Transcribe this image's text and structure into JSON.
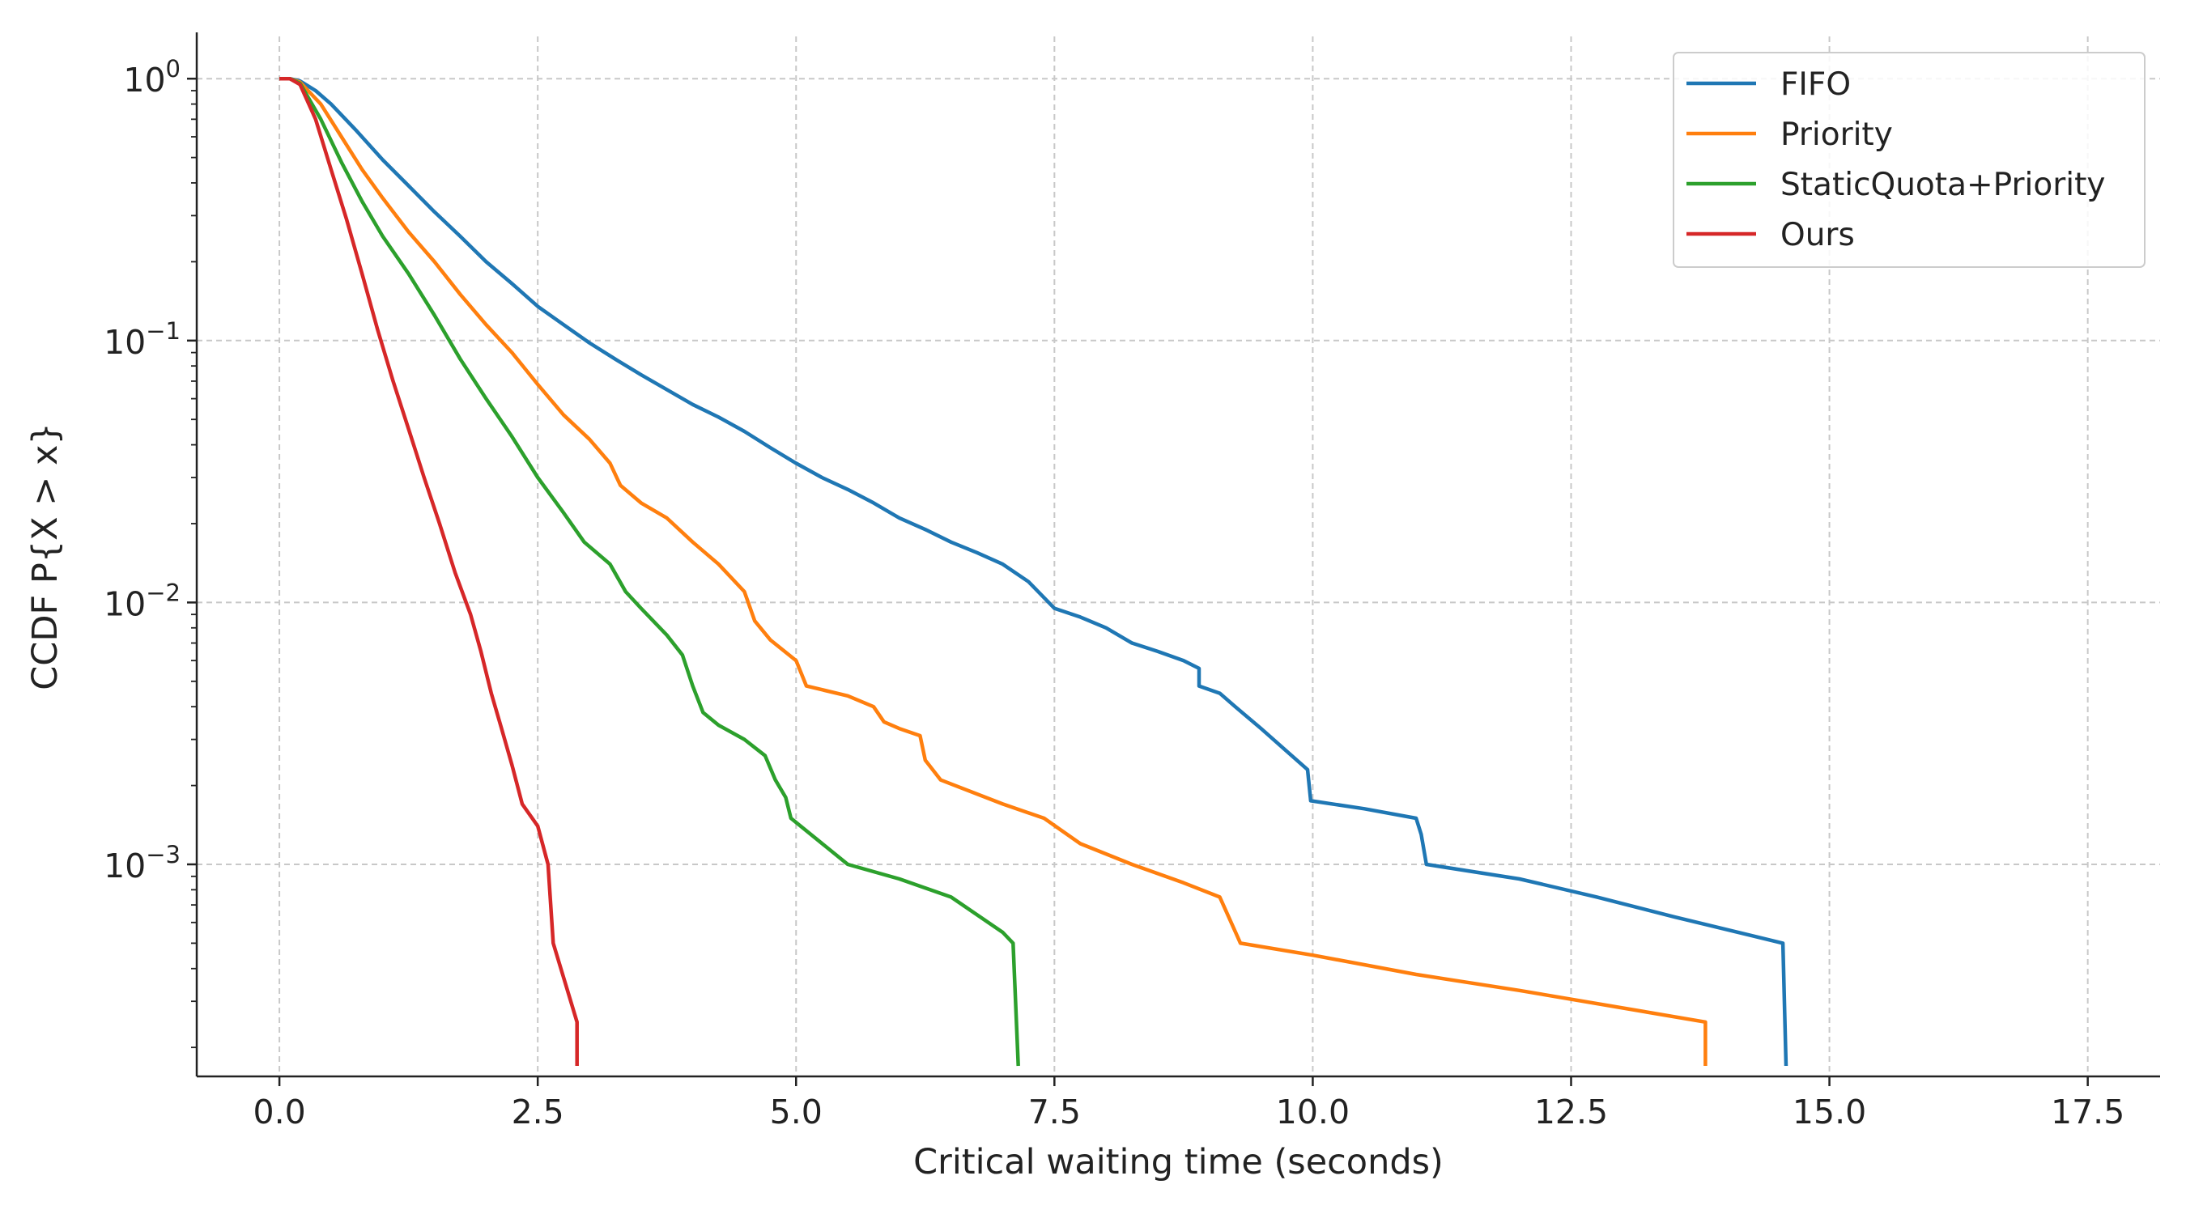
{
  "chart_data": {
    "type": "line",
    "title": "",
    "xlabel": "Critical waiting time (seconds)",
    "ylabel": "CCDF  P{X > x}",
    "xlim": [
      -0.8,
      18.2
    ],
    "ylim": [
      0.000155,
      1.45
    ],
    "yscale": "log",
    "grid": true,
    "legend_position": "top-right",
    "x_ticks": [
      0,
      2.5,
      5,
      7.5,
      10,
      12.5,
      15,
      17.5
    ],
    "x_tick_labels": [
      "0.0",
      "2.5",
      "5.0",
      "7.5",
      "10.0",
      "12.5",
      "15.0",
      "17.5"
    ],
    "y_ticks": [
      {
        "value": 1,
        "base": "10",
        "exp": "0"
      },
      {
        "value": 0.1,
        "base": "10",
        "exp": "−1"
      },
      {
        "value": 0.01,
        "base": "10",
        "exp": "−2"
      },
      {
        "value": 0.001,
        "base": "10",
        "exp": "−3"
      }
    ],
    "series": [
      {
        "name": "FIFO",
        "color": "#1f77b4",
        "points": [
          [
            0.0,
            1.0
          ],
          [
            0.1,
            1.0
          ],
          [
            0.2,
            0.98
          ],
          [
            0.35,
            0.9
          ],
          [
            0.5,
            0.8
          ],
          [
            0.75,
            0.63
          ],
          [
            1.0,
            0.49
          ],
          [
            1.25,
            0.39
          ],
          [
            1.5,
            0.31
          ],
          [
            1.75,
            0.25
          ],
          [
            2.0,
            0.2
          ],
          [
            2.25,
            0.165
          ],
          [
            2.5,
            0.135
          ],
          [
            2.75,
            0.115
          ],
          [
            3.0,
            0.098
          ],
          [
            3.25,
            0.085
          ],
          [
            3.5,
            0.074
          ],
          [
            3.75,
            0.065
          ],
          [
            4.0,
            0.057
          ],
          [
            4.25,
            0.051
          ],
          [
            4.5,
            0.045
          ],
          [
            4.75,
            0.039
          ],
          [
            5.0,
            0.034
          ],
          [
            5.25,
            0.03
          ],
          [
            5.5,
            0.027
          ],
          [
            5.75,
            0.024
          ],
          [
            6.0,
            0.021
          ],
          [
            6.25,
            0.019
          ],
          [
            6.5,
            0.017
          ],
          [
            6.75,
            0.0155
          ],
          [
            7.0,
            0.014
          ],
          [
            7.25,
            0.012
          ],
          [
            7.5,
            0.0095
          ],
          [
            7.75,
            0.0088
          ],
          [
            8.0,
            0.008
          ],
          [
            8.25,
            0.007
          ],
          [
            8.5,
            0.0065
          ],
          [
            8.75,
            0.006
          ],
          [
            8.9,
            0.0056
          ],
          [
            8.9,
            0.0048
          ],
          [
            9.1,
            0.0045
          ],
          [
            9.25,
            0.004
          ],
          [
            9.5,
            0.0033
          ],
          [
            9.75,
            0.0027
          ],
          [
            9.95,
            0.0023
          ],
          [
            9.98,
            0.00175
          ],
          [
            10.5,
            0.00163
          ],
          [
            11.0,
            0.0015
          ],
          [
            11.05,
            0.0013
          ],
          [
            11.1,
            0.001
          ],
          [
            12.0,
            0.00088
          ],
          [
            12.75,
            0.00075
          ],
          [
            13.5,
            0.00063
          ],
          [
            14.55,
            0.0005
          ],
          [
            14.58,
            0.00017
          ]
        ]
      },
      {
        "name": "Priority",
        "color": "#ff7f0e",
        "points": [
          [
            0.0,
            1.0
          ],
          [
            0.1,
            1.0
          ],
          [
            0.2,
            0.97
          ],
          [
            0.4,
            0.8
          ],
          [
            0.6,
            0.6
          ],
          [
            0.8,
            0.45
          ],
          [
            1.0,
            0.35
          ],
          [
            1.25,
            0.26
          ],
          [
            1.5,
            0.2
          ],
          [
            1.75,
            0.15
          ],
          [
            2.0,
            0.115
          ],
          [
            2.25,
            0.09
          ],
          [
            2.5,
            0.068
          ],
          [
            2.75,
            0.052
          ],
          [
            3.0,
            0.042
          ],
          [
            3.2,
            0.034
          ],
          [
            3.3,
            0.028
          ],
          [
            3.5,
            0.024
          ],
          [
            3.75,
            0.021
          ],
          [
            4.0,
            0.017
          ],
          [
            4.25,
            0.014
          ],
          [
            4.5,
            0.011
          ],
          [
            4.6,
            0.0085
          ],
          [
            4.75,
            0.0072
          ],
          [
            5.0,
            0.006
          ],
          [
            5.1,
            0.0048
          ],
          [
            5.5,
            0.0044
          ],
          [
            5.75,
            0.004
          ],
          [
            5.85,
            0.0035
          ],
          [
            6.0,
            0.0033
          ],
          [
            6.2,
            0.0031
          ],
          [
            6.25,
            0.0025
          ],
          [
            6.4,
            0.0021
          ],
          [
            7.0,
            0.0017
          ],
          [
            7.4,
            0.0015
          ],
          [
            7.75,
            0.0012
          ],
          [
            8.25,
            0.001
          ],
          [
            8.75,
            0.00085
          ],
          [
            9.1,
            0.00075
          ],
          [
            9.3,
            0.0005
          ],
          [
            10.0,
            0.00045
          ],
          [
            11.0,
            0.00038
          ],
          [
            12.0,
            0.00033
          ],
          [
            13.8,
            0.00025
          ],
          [
            13.8,
            0.00017
          ]
        ]
      },
      {
        "name": "StaticQuota+Priority",
        "color": "#2ca02c",
        "points": [
          [
            0.0,
            1.0
          ],
          [
            0.1,
            1.0
          ],
          [
            0.2,
            0.96
          ],
          [
            0.4,
            0.7
          ],
          [
            0.6,
            0.48
          ],
          [
            0.8,
            0.34
          ],
          [
            1.0,
            0.25
          ],
          [
            1.25,
            0.18
          ],
          [
            1.5,
            0.125
          ],
          [
            1.75,
            0.085
          ],
          [
            2.0,
            0.06
          ],
          [
            2.25,
            0.043
          ],
          [
            2.5,
            0.03
          ],
          [
            2.75,
            0.022
          ],
          [
            2.95,
            0.017
          ],
          [
            3.2,
            0.014
          ],
          [
            3.35,
            0.011
          ],
          [
            3.5,
            0.0095
          ],
          [
            3.75,
            0.0075
          ],
          [
            3.9,
            0.0063
          ],
          [
            4.0,
            0.0048
          ],
          [
            4.1,
            0.0038
          ],
          [
            4.25,
            0.0034
          ],
          [
            4.5,
            0.003
          ],
          [
            4.7,
            0.0026
          ],
          [
            4.8,
            0.0021
          ],
          [
            4.9,
            0.0018
          ],
          [
            4.95,
            0.0015
          ],
          [
            5.5,
            0.001
          ],
          [
            6.0,
            0.00088
          ],
          [
            6.5,
            0.00075
          ],
          [
            7.0,
            0.00055
          ],
          [
            7.1,
            0.0005
          ],
          [
            7.15,
            0.00017
          ]
        ]
      },
      {
        "name": "Ours",
        "color": "#d62728",
        "points": [
          [
            0.0,
            1.0
          ],
          [
            0.1,
            1.0
          ],
          [
            0.2,
            0.95
          ],
          [
            0.35,
            0.7
          ],
          [
            0.5,
            0.45
          ],
          [
            0.65,
            0.29
          ],
          [
            0.8,
            0.18
          ],
          [
            0.95,
            0.11
          ],
          [
            1.1,
            0.07
          ],
          [
            1.25,
            0.046
          ],
          [
            1.4,
            0.03
          ],
          [
            1.55,
            0.02
          ],
          [
            1.7,
            0.013
          ],
          [
            1.85,
            0.009
          ],
          [
            1.95,
            0.0065
          ],
          [
            2.05,
            0.0045
          ],
          [
            2.15,
            0.0033
          ],
          [
            2.25,
            0.0024
          ],
          [
            2.35,
            0.0017
          ],
          [
            2.5,
            0.0014
          ],
          [
            2.6,
            0.001
          ],
          [
            2.65,
            0.0005
          ],
          [
            2.88,
            0.00025
          ],
          [
            2.88,
            0.00017
          ]
        ]
      }
    ]
  }
}
